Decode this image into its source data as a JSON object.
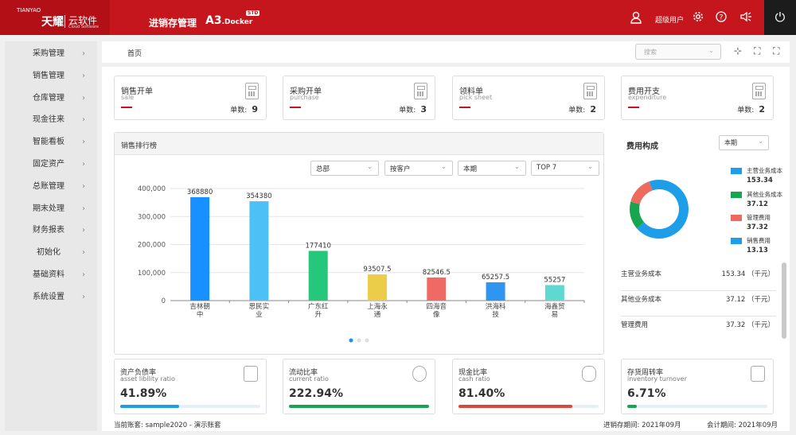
{
  "header": {
    "brand_en": "TIANYAO",
    "brand_cn": "天耀",
    "brand_sw": "云软件",
    "brand_sub": "Cloud Software",
    "title": "进销存管理",
    "product": "A3",
    "product_suffix": ".Docker",
    "badge": "STD",
    "user": "超级用户"
  },
  "sidebar": {
    "items": [
      {
        "label": "采购管理"
      },
      {
        "label": "销售管理"
      },
      {
        "label": "仓库管理"
      },
      {
        "label": "现金往来"
      },
      {
        "label": "智能看板"
      },
      {
        "label": "固定资产"
      },
      {
        "label": "总账管理"
      },
      {
        "label": "期末处理"
      },
      {
        "label": "财务报表"
      },
      {
        "label": "初始化"
      },
      {
        "label": "基础资料"
      },
      {
        "label": "系统设置"
      }
    ]
  },
  "topbar": {
    "breadcrumb": "首页",
    "search_placeholder": "搜索"
  },
  "cards": [
    {
      "title": "销售开单",
      "sub": "sale",
      "count_label": "单数:",
      "count": "9"
    },
    {
      "title": "采购开单",
      "sub": "purchase",
      "count_label": "单数:",
      "count": "3"
    },
    {
      "title": "领料单",
      "sub": "pick sheet",
      "count_label": "单数:",
      "count": "2"
    },
    {
      "title": "费用开支",
      "sub": "expenditure",
      "count_label": "单数:",
      "count": "2"
    }
  ],
  "rank": {
    "title": "销售排行榜",
    "filters": [
      "总部",
      "按客户",
      "本期",
      "TOP 7"
    ]
  },
  "chart_data": {
    "type": "bar",
    "categories": [
      "吉林朝中",
      "思民实业",
      "广东红升",
      "上海永通",
      "四海音像",
      "洪海科技",
      "海鑫贸易"
    ],
    "values": [
      368880,
      354380,
      177410,
      93507.5,
      82546.5,
      65257.5,
      55257
    ],
    "value_labels": [
      "368880",
      "354380",
      "177410",
      "93507.5",
      "82546.5",
      "65257.5",
      "55257"
    ],
    "colors": [
      "#1890ff",
      "#4dc0f5",
      "#25c77a",
      "#ebcd4a",
      "#ef6a65",
      "#2e95f0",
      "#5ed8d0"
    ],
    "ylim": [
      0,
      400000
    ],
    "yticks": [
      "400,000",
      "300,000",
      "200,000",
      "100,000",
      "0"
    ],
    "ytick_values": [
      400000,
      300000,
      200000,
      100000,
      0
    ]
  },
  "cost": {
    "title": "费用构成",
    "period": "本期",
    "legend": [
      {
        "name": "主营业务成本",
        "value": "153.34",
        "color": "#1e9ee8"
      },
      {
        "name": "其他业务成本",
        "value": "37.12",
        "color": "#17a550"
      },
      {
        "name": "管理费用",
        "value": "37.32",
        "color": "#ef6a5e"
      },
      {
        "name": "销售费用",
        "value": "13.13",
        "color": "#1e9ee8"
      }
    ],
    "rows": [
      {
        "name": "主营业务成本",
        "value": "153.34 （千元）"
      },
      {
        "name": "其他业务成本",
        "value": "37.12 （千元）"
      },
      {
        "name": "管理费用",
        "value": "37.32 （千元）"
      }
    ]
  },
  "ratios": [
    {
      "title": "资产负债率",
      "sub": "asset libility ratio",
      "value": "41.89%",
      "pct": 41.89,
      "color": "#1e9ee8"
    },
    {
      "title": "流动比率",
      "sub": "current ratio",
      "value": "222.94%",
      "pct": 100,
      "color": "#17a550"
    },
    {
      "title": "现金比率",
      "sub": "cash ratio",
      "value": "81.40%",
      "pct": 81.4,
      "color": "#d9473d"
    },
    {
      "title": "存货周转率",
      "sub": "inventory turnover",
      "value": "6.71%",
      "pct": 6.71,
      "color": "#17a550"
    }
  ],
  "footer": {
    "account": "当前账套: sample2020 - 演示账套",
    "inv_period": "进销存期间: 2021年09月",
    "acc_period": "会计期间: 2021年09月"
  }
}
